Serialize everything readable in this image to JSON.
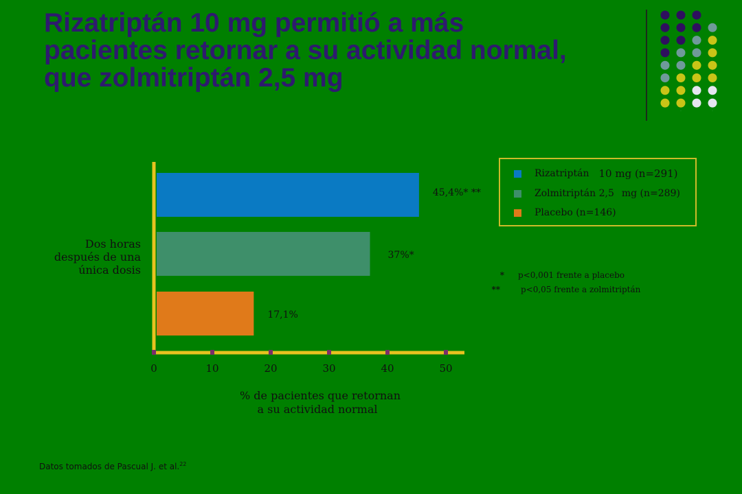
{
  "title": {
    "line1": "Rizatriptán 10 mg permitió a más",
    "line2": "pacientes retornar a su actividad normal,",
    "line3": "que zolmitriptán 2,5 mg"
  },
  "chart_data": {
    "type": "bar",
    "orientation": "horizontal",
    "category_label": [
      "Dos horas",
      "después de una",
      "única dosis"
    ],
    "series": [
      {
        "name": "Rizatriptán 10 mg (n=291)",
        "value": 45.4,
        "label": "45,4%* **",
        "color": "#0a7ac3"
      },
      {
        "name": "Zolmitriptán 2,5 mg (n=289)",
        "value": 37,
        "label": "37%*",
        "color": "#3e8f6a"
      },
      {
        "name": "Placebo (n=146)",
        "value": 17.1,
        "label": "17,1%",
        "color": "#e07a1a"
      }
    ],
    "xlim": [
      0,
      52
    ],
    "xticks": [
      0,
      10,
      20,
      30,
      40,
      50
    ],
    "xlabel": [
      "% de pacientes que retornan",
      "a su actividad normal"
    ],
    "legend_position": "top-right",
    "grid": false
  },
  "legend": {
    "items": [
      {
        "name": "Rizatriptán",
        "detail": "10 mg (n=291)",
        "color": "#0a7ac3"
      },
      {
        "name": "Zolmitriptán 2,5",
        "detail": "mg (n=289)",
        "color": "#3e8f6a"
      },
      {
        "name": "Placebo (n=146)",
        "detail": "",
        "color": "#e07a1a"
      }
    ]
  },
  "footnotes": [
    {
      "mark": "*",
      "text": "p<0,001 frente a placebo"
    },
    {
      "mark": "**",
      "text": "p<0,05 frente a zolmitriptán"
    }
  ],
  "source": {
    "text": "Datos tomados de Pascual J. et al.",
    "ref": "22"
  },
  "decoration": {
    "palette": [
      "#2e0f5e",
      "#6f9a9a",
      "#c9c417",
      "#e5e5f0"
    ],
    "dot_rows": [
      [
        0,
        0,
        0,
        -1
      ],
      [
        0,
        0,
        0,
        1
      ],
      [
        0,
        0,
        1,
        2
      ],
      [
        0,
        1,
        1,
        2
      ],
      [
        1,
        1,
        2,
        2
      ],
      [
        1,
        2,
        2,
        2
      ],
      [
        2,
        2,
        3,
        3
      ],
      [
        2,
        2,
        3,
        3
      ],
      [
        -1,
        3,
        -1,
        3
      ]
    ]
  }
}
